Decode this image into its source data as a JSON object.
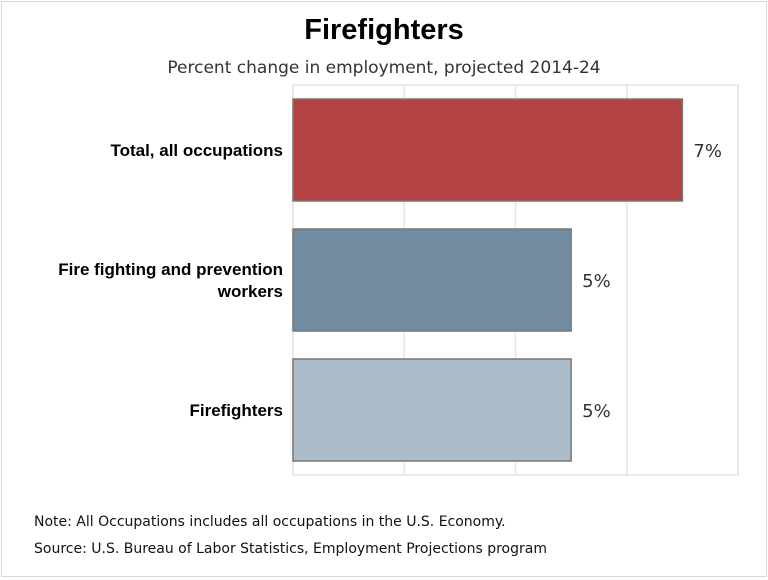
{
  "chart_data": {
    "type": "bar",
    "orientation": "horizontal",
    "title": "Firefighters",
    "subtitle": "Percent change in employment, projected 2014-24",
    "categories": [
      [
        "Total, all occupations"
      ],
      [
        "Fire fighting and prevention",
        "workers"
      ],
      [
        "Firefighters"
      ]
    ],
    "values": [
      7,
      5,
      5
    ],
    "data_labels": [
      "7%",
      "5%",
      "5%"
    ],
    "colors": [
      "#b34244",
      "#718ca1",
      "#acbdc9"
    ],
    "xlim": [
      0,
      8
    ],
    "gridlines": [
      2,
      4,
      6
    ],
    "grid": true,
    "xlabel": "",
    "ylabel": ""
  },
  "notes": {
    "note": "Note: All Occupations includes all occupations in the U.S. Economy.",
    "source": "Source: U.S. Bureau of Labor Statistics, Employment Projections program"
  }
}
